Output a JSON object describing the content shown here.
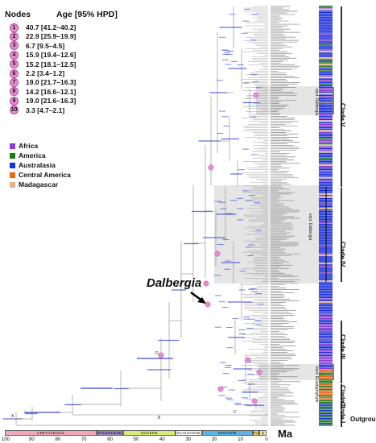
{
  "legend_nodes": {
    "header_nodes": "Nodes",
    "header_age": "Age [95% HPD]",
    "items": [
      {
        "n": "1",
        "age": "40.7 [41.2–40.2]"
      },
      {
        "n": "2",
        "age": "22.9 [25.9–19.9]"
      },
      {
        "n": "3",
        "age": "6.7 [9.5–4.5]"
      },
      {
        "n": "4",
        "age": "15.9 [19.4–12.6]"
      },
      {
        "n": "5",
        "age": "15.2 [18.1–12.5]"
      },
      {
        "n": "6",
        "age": "2.2 [3.4–1.2]"
      },
      {
        "n": "7",
        "age": "19.0 [21.7–16.3]"
      },
      {
        "n": "8",
        "age": "14.2 [16.6–12.1]"
      },
      {
        "n": "9",
        "age": "19.0 [21.6–16.3]"
      },
      {
        "n": "10",
        "age": "3.3 [4.7–2.1]"
      }
    ]
  },
  "legend_regions": [
    {
      "label": "Africa",
      "color": "#8a3fd1"
    },
    {
      "label": "America",
      "color": "#1d7a1d"
    },
    {
      "label": "Australasia",
      "color": "#1b2fd6"
    },
    {
      "label": "Central America",
      "color": "#f0641e"
    },
    {
      "label": "Madagascar",
      "color": "#e2b48e"
    }
  ],
  "main_label": "Dalbergia",
  "clades": [
    {
      "label": "Clade V"
    },
    {
      "label": "Clade IV"
    },
    {
      "label": "Clade III"
    },
    {
      "label": "Clade II"
    },
    {
      "label": "Clade I"
    }
  ],
  "outgroup_label": "Outgroup",
  "sections": [
    {
      "label": "sect. Dalbergia"
    },
    {
      "label": "sect. Dalbergia"
    },
    {
      "label": "sect. Ecastaphyllum"
    }
  ],
  "timescale": {
    "unit": "Ma",
    "ticks": [
      "100",
      "90",
      "80",
      "70",
      "60",
      "50",
      "40",
      "30",
      "20",
      "10",
      "0"
    ],
    "epochs": [
      {
        "label": "CRETACEOUS",
        "color": "#f2a7b8"
      },
      {
        "label": "PALEOCENE",
        "color": "#9b86c2"
      },
      {
        "label": "EOCENE",
        "color": "#d8ea7a"
      },
      {
        "label": "OLIGOCENE",
        "color": "#ffffff"
      },
      {
        "label": "MIOCENE",
        "color": "#5bb4e5"
      },
      {
        "label": "PLI",
        "color": "#f3d55a"
      },
      {
        "label": "Q",
        "color": "#f3e7a8"
      }
    ]
  },
  "calibration_letters": [
    "A",
    "B",
    "C",
    "D"
  ]
}
